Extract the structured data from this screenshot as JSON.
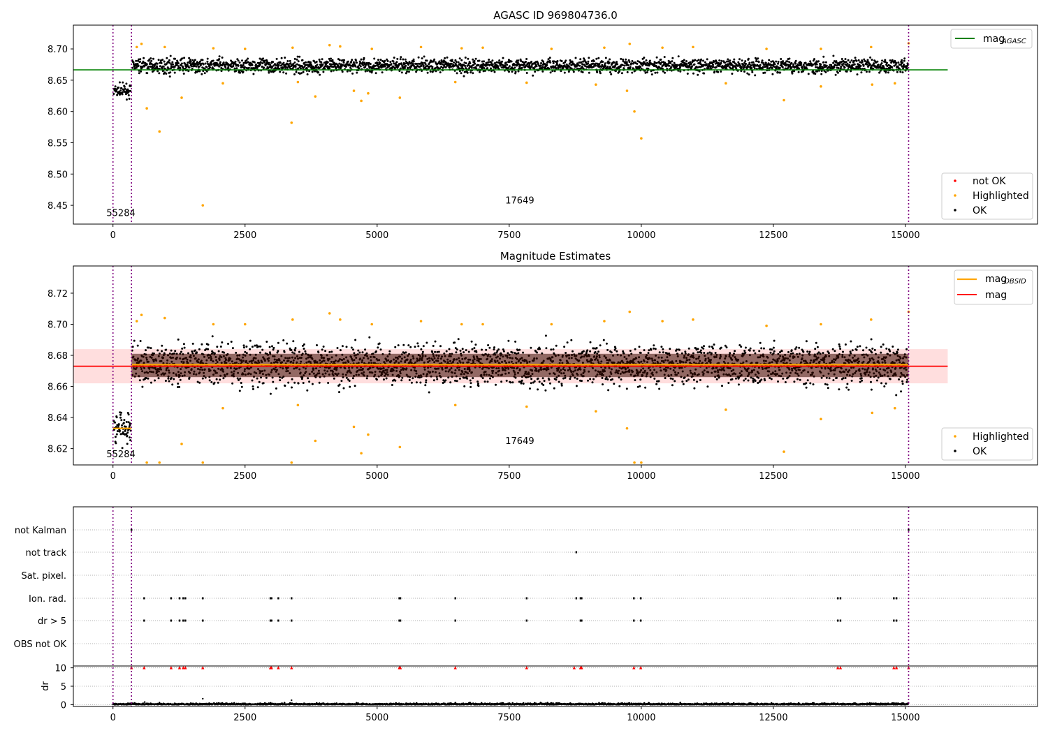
{
  "chart_data": [
    {
      "type": "scatter",
      "title": "AGASC ID 969804736.0",
      "xlim": [
        -750,
        17500
      ],
      "ylim": [
        8.42,
        8.738
      ],
      "xticks": [
        0,
        2500,
        5000,
        7500,
        10000,
        12500,
        15000
      ],
      "yticks": [
        8.45,
        8.5,
        8.55,
        8.6,
        8.65,
        8.7
      ],
      "vlines": [
        0,
        350,
        15060
      ],
      "obsid_labels": [
        {
          "text": "55284",
          "x": 150,
          "y": 8.433
        },
        {
          "text": "17649",
          "x": 7700,
          "y": 8.453
        }
      ],
      "reference_line": {
        "name": "mag_AGASC",
        "y": 8.6665,
        "x": [
          -750,
          15800
        ],
        "color": "#008000"
      },
      "clusters": [
        {
          "x": [
            0,
            350
          ],
          "center": 8.633,
          "spread": 0.007
        },
        {
          "x": [
            350,
            15060
          ],
          "center": 8.673,
          "spread": 0.008
        }
      ],
      "highlighted_points": [
        [
          640,
          8.605
        ],
        [
          880,
          8.568
        ],
        [
          1300,
          8.622
        ],
        [
          1700,
          8.45
        ],
        [
          2080,
          8.645
        ],
        [
          3380,
          8.582
        ],
        [
          3500,
          8.647
        ],
        [
          3830,
          8.624
        ],
        [
          4560,
          8.633
        ],
        [
          4700,
          8.617
        ],
        [
          4830,
          8.629
        ],
        [
          5430,
          8.622
        ],
        [
          6480,
          8.647
        ],
        [
          7830,
          8.646
        ],
        [
          9140,
          8.643
        ],
        [
          9730,
          8.633
        ],
        [
          9870,
          8.6
        ],
        [
          10000,
          8.557
        ],
        [
          11600,
          8.645
        ],
        [
          12700,
          8.618
        ],
        [
          13400,
          8.64
        ],
        [
          14370,
          8.643
        ],
        [
          14800,
          8.645
        ],
        [
          450,
          8.703
        ],
        [
          540,
          8.708
        ],
        [
          980,
          8.703
        ],
        [
          1900,
          8.701
        ],
        [
          2500,
          8.7
        ],
        [
          3400,
          8.702
        ],
        [
          4100,
          8.706
        ],
        [
          4300,
          8.704
        ],
        [
          4900,
          8.7
        ],
        [
          5830,
          8.703
        ],
        [
          6600,
          8.701
        ],
        [
          7000,
          8.702
        ],
        [
          8300,
          8.7
        ],
        [
          9300,
          8.702
        ],
        [
          9780,
          8.708
        ],
        [
          10400,
          8.702
        ],
        [
          10980,
          8.703
        ],
        [
          12370,
          8.7
        ],
        [
          13400,
          8.7
        ],
        [
          14350,
          8.703
        ],
        [
          15060,
          8.709
        ]
      ],
      "legend_series": [
        "not OK",
        "Highlighted",
        "OK"
      ],
      "colors": {
        "ok": "#000000",
        "highlighted": "#ffa500",
        "not_ok": "#ff0000"
      }
    },
    {
      "type": "scatter",
      "title": "Magnitude Estimates",
      "xlim": [
        -750,
        17500
      ],
      "ylim": [
        8.6095,
        8.7375
      ],
      "xticks": [
        0,
        2500,
        5000,
        7500,
        10000,
        12500,
        15000
      ],
      "yticks": [
        8.62,
        8.64,
        8.66,
        8.68,
        8.7,
        8.72
      ],
      "vlines": [
        0,
        350,
        15060
      ],
      "obsid_labels": [
        {
          "text": "55284",
          "x": 150,
          "y": 8.6145
        },
        {
          "text": "17649",
          "x": 7700,
          "y": 8.623
        }
      ],
      "mag_line": {
        "name": "mag",
        "y": 8.673,
        "band": [
          8.662,
          8.684
        ],
        "x": [
          -750,
          15800
        ],
        "color": "#ff0000"
      },
      "obsid_means": [
        {
          "x": [
            0,
            350
          ],
          "y": 8.633
        },
        {
          "x": [
            350,
            15060
          ],
          "y": 8.674
        }
      ],
      "clusters": [
        {
          "x": [
            0,
            350
          ],
          "center": 8.633,
          "spread": 0.0075
        },
        {
          "x": [
            350,
            15060
          ],
          "center": 8.674,
          "spread": 0.009
        }
      ],
      "highlighted_points": [
        [
          640,
          8.611
        ],
        [
          880,
          8.611
        ],
        [
          1300,
          8.623
        ],
        [
          1700,
          8.611
        ],
        [
          2080,
          8.646
        ],
        [
          3380,
          8.611
        ],
        [
          3500,
          8.648
        ],
        [
          3830,
          8.625
        ],
        [
          4560,
          8.634
        ],
        [
          4700,
          8.617
        ],
        [
          4830,
          8.629
        ],
        [
          5430,
          8.621
        ],
        [
          6480,
          8.648
        ],
        [
          7830,
          8.647
        ],
        [
          9140,
          8.644
        ],
        [
          9730,
          8.633
        ],
        [
          9870,
          8.611
        ],
        [
          10000,
          8.611
        ],
        [
          11600,
          8.645
        ],
        [
          12700,
          8.618
        ],
        [
          13400,
          8.639
        ],
        [
          14370,
          8.643
        ],
        [
          14800,
          8.646
        ],
        [
          450,
          8.702
        ],
        [
          540,
          8.706
        ],
        [
          980,
          8.704
        ],
        [
          1900,
          8.7
        ],
        [
          2500,
          8.7
        ],
        [
          3400,
          8.703
        ],
        [
          4100,
          8.707
        ],
        [
          4300,
          8.703
        ],
        [
          4900,
          8.7
        ],
        [
          5830,
          8.702
        ],
        [
          6600,
          8.7
        ],
        [
          7000,
          8.7
        ],
        [
          8300,
          8.7
        ],
        [
          9300,
          8.702
        ],
        [
          9780,
          8.708
        ],
        [
          10400,
          8.702
        ],
        [
          10980,
          8.703
        ],
        [
          12370,
          8.699
        ],
        [
          13400,
          8.7
        ],
        [
          14350,
          8.703
        ],
        [
          15060,
          8.708
        ]
      ],
      "legend_lines": [
        "mag_OBSID",
        "mag"
      ],
      "legend_series": [
        "Highlighted",
        "OK"
      ],
      "colors": {
        "ok": "#000000",
        "highlighted": "#ffa500",
        "mag_obsid": "#ffa500",
        "mag": "#ff0000",
        "band": "#ffcccc"
      }
    },
    {
      "type": "scatter",
      "title": "",
      "xlim": [
        -750,
        17500
      ],
      "xticks": [
        0,
        2500,
        5000,
        7500,
        10000,
        12500,
        15000
      ],
      "vlines": [
        0,
        350,
        15060
      ],
      "flag_rows": [
        "not Kalman",
        "not track",
        "Sat. pixel.",
        "Ion. rad.",
        "dr > 5",
        "OBS not OK"
      ],
      "flag_points": {
        "not Kalman": [
          350,
          15060
        ],
        "not track": [
          8770
        ],
        "Sat. pixel.": [],
        "Ion. rad.": [
          590,
          1100,
          1260,
          1330,
          1370,
          1700,
          2980,
          3000,
          3130,
          3380,
          5420,
          5440,
          6480,
          7830,
          8770,
          8850,
          8870,
          9860,
          9990,
          13720,
          13770,
          14780,
          14830
        ],
        "dr > 5": [
          590,
          1100,
          1260,
          1330,
          1370,
          1700,
          2980,
          3000,
          3130,
          3380,
          5420,
          5440,
          6480,
          7830,
          8850,
          8870,
          9860,
          9990,
          13720,
          13770,
          14780,
          14830
        ],
        "OBS not OK": []
      },
      "dr_ylabel": "dr",
      "dr_yticks": [
        0,
        5,
        10
      ],
      "dr_ylim": [
        -0.5,
        10.5
      ],
      "dr_outliers": [
        350,
        590,
        1100,
        1260,
        1330,
        1370,
        1700,
        2980,
        3000,
        3130,
        3380,
        5420,
        5440,
        6480,
        7830,
        8730,
        8850,
        8870,
        9860,
        9990,
        13720,
        13770,
        14780,
        14830,
        15060
      ],
      "dr_small": [
        [
          1700,
          1.6
        ],
        [
          3380,
          1.2
        ],
        [
          600,
          0.7
        ],
        [
          9200,
          0.5
        ]
      ],
      "colors": {
        "flag": "#000000",
        "dr_outlier": "#ff0000",
        "dr": "#000000"
      }
    }
  ]
}
